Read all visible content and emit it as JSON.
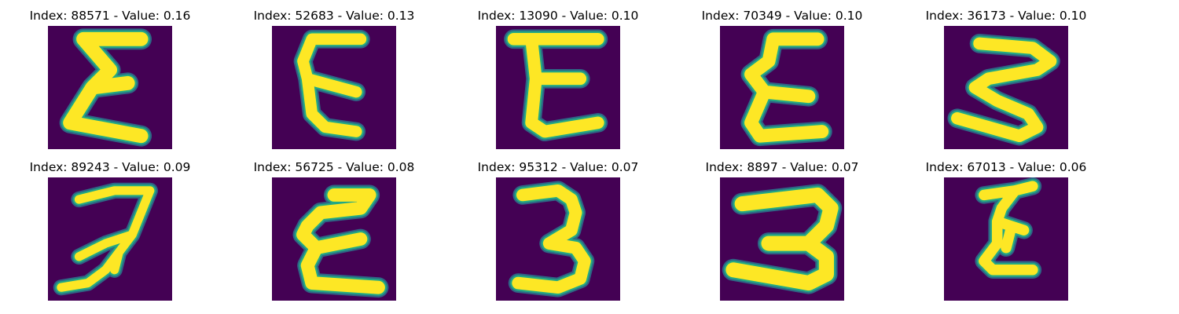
{
  "colors": {
    "background": "#440154",
    "mid": "#2a788e",
    "edge": "#22a884",
    "stroke": "#fde725"
  },
  "panels": [
    {
      "index": "88571",
      "value": "0.16",
      "title": "Index: 88571 - Value: 0.16"
    },
    {
      "index": "52683",
      "value": "0.13",
      "title": "Index: 52683 - Value: 0.13"
    },
    {
      "index": "13090",
      "value": "0.10",
      "title": "Index: 13090 - Value: 0.10"
    },
    {
      "index": "70349",
      "value": "0.10",
      "title": "Index: 70349 - Value: 0.10"
    },
    {
      "index": "36173",
      "value": "0.10",
      "title": "Index: 36173 - Value: 0.10"
    },
    {
      "index": "89243",
      "value": "0.09",
      "title": "Index: 89243 - Value: 0.09"
    },
    {
      "index": "56725",
      "value": "0.08",
      "title": "Index: 56725 - Value: 0.08"
    },
    {
      "index": "95312",
      "value": "0.07",
      "title": "Index: 95312 - Value: 0.07"
    },
    {
      "index": "8897",
      "value": "0.07",
      "title": "Index: 8897 - Value: 0.07"
    },
    {
      "index": "67013",
      "value": "0.06",
      "title": "Index: 67013 - Value: 0.06"
    }
  ]
}
